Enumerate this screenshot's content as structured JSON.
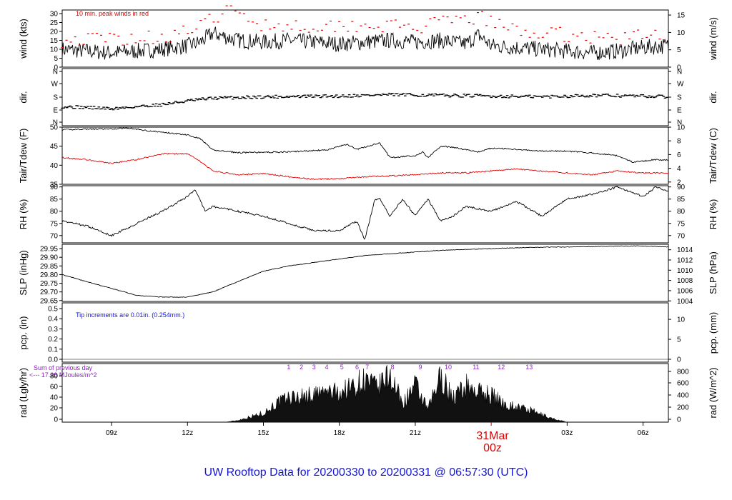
{
  "title": "UW Rooftop Data for 20200330  to  20200331 @ 06:57:30  (UTC)",
  "colors": {
    "title": "#1515d8",
    "red": "#e00000",
    "blue": "#1515d8",
    "purple": "#9020c8",
    "black": "#000000"
  },
  "x_axis": {
    "ticks": [
      {
        "h": 9,
        "label": "09z"
      },
      {
        "h": 12,
        "label": "12z"
      },
      {
        "h": 15,
        "label": "15z"
      },
      {
        "h": 18,
        "label": "18z"
      },
      {
        "h": 21,
        "label": "21z"
      },
      {
        "h": 27,
        "label": "03z"
      },
      {
        "h": 30,
        "label": "06z"
      }
    ],
    "date_label": "31Mar",
    "date_sub": "00z",
    "range_h": [
      7.05,
      31.0
    ]
  },
  "panels": {
    "wind": {
      "ylabel_left": "wind (kts)",
      "ylabel_right": "wind (m/s)",
      "left_ticks": [
        "0",
        "5",
        "10",
        "15",
        "20",
        "25",
        "30"
      ],
      "left_range": [
        0,
        32
      ],
      "right_ticks": [
        "0",
        "5",
        "10",
        "15"
      ],
      "note": "10 min. peak winds in red"
    },
    "dir": {
      "ylabel_left": "dir.",
      "ylabel_right": "dir.",
      "left_ticks": [
        "N",
        "E",
        "S",
        "W",
        "N"
      ],
      "right_ticks": [
        "N",
        "E",
        "S",
        "W",
        "N"
      ]
    },
    "temp": {
      "ylabel_left": "Tair/Tdew (F)",
      "ylabel_right": "Tair/Tdew (C)",
      "left_ticks": [
        "35",
        "40",
        "45",
        "50"
      ],
      "left_range": [
        35,
        50
      ],
      "right_ticks": [
        "2",
        "4",
        "6",
        "8",
        "10"
      ]
    },
    "rh": {
      "ylabel_left": "RH (%)",
      "ylabel_right": "RH (%)",
      "left_ticks": [
        "70",
        "75",
        "80",
        "85",
        "90"
      ],
      "left_range": [
        67,
        90.5
      ],
      "right_ticks": [
        "70",
        "75",
        "80",
        "85",
        "90"
      ]
    },
    "slp": {
      "ylabel_left": "SLP (inHg)",
      "ylabel_right": "SLP (hPa)",
      "left_ticks": [
        "29.65",
        "29.70",
        "29.75",
        "29.80",
        "29.85",
        "29.90",
        "29.95"
      ],
      "left_range": [
        29.645,
        29.975
      ],
      "right_ticks": [
        "1004",
        "1006",
        "1008",
        "1010",
        "1012",
        "1014"
      ]
    },
    "pcp": {
      "ylabel_left": "pcp. (in)",
      "ylabel_right": "pcp. (mm)",
      "left_ticks": [
        "0.0",
        "0.1",
        "0.2",
        "0.3",
        "0.4",
        "0.5"
      ],
      "right_ticks": [
        "0",
        "5",
        "10"
      ],
      "note": "Tip increments are 0.01in. (0.254mm.)"
    },
    "rad": {
      "ylabel_left": "rad (Lgly/hr)",
      "ylabel_right": "rad (W/m^2)",
      "left_ticks": [
        "0",
        "20",
        "40",
        "60",
        "80"
      ],
      "left_range": [
        0,
        82
      ],
      "right_ticks": [
        "0",
        "200",
        "400",
        "600",
        "800"
      ],
      "note_line1": "Sum of previous day",
      "note_line2": "<--- 17.36 MJoules/m^2",
      "markers": [
        "1",
        "2",
        "3",
        "4",
        "5",
        "6",
        "7",
        "8",
        "9",
        "10",
        "11",
        "12",
        "13"
      ]
    }
  },
  "chart_data": {
    "type": "line",
    "x_unit": "hours UTC since 00z 30 Mar 2020 (24 = 00z 31 Mar)",
    "series": [
      {
        "name": "wind",
        "unit": "kts",
        "x": [
          7.05,
          8,
          9,
          10,
          11,
          12,
          12.5,
          13,
          14,
          15,
          16,
          17,
          18,
          19,
          20,
          21,
          22,
          23,
          23.5,
          24,
          25,
          26,
          27,
          28,
          29,
          30,
          31
        ],
        "y": [
          10,
          9,
          8,
          9,
          10,
          12,
          14,
          19,
          15,
          14,
          15,
          14,
          13,
          14,
          15,
          14,
          15,
          13,
          18,
          12,
          11,
          10,
          9,
          8,
          9,
          11,
          12
        ]
      },
      {
        "name": "peak wind",
        "unit": "kts",
        "x": [
          7.05,
          9,
          11,
          12.5,
          13.5,
          15,
          17,
          19,
          21,
          23.5,
          25,
          27,
          29,
          31
        ],
        "y": [
          15,
          16,
          17,
          22,
          32,
          24,
          23,
          24,
          22,
          28,
          20,
          18,
          16,
          19
        ]
      },
      {
        "name": "direction",
        "unit": "deg",
        "x": [
          7.05,
          8,
          9,
          10,
          11,
          12,
          13,
          15,
          18,
          20,
          22,
          24,
          26,
          28,
          30,
          31
        ],
        "y": [
          110,
          105,
          95,
          110,
          125,
          150,
          170,
          180,
          185,
          195,
          190,
          185,
          180,
          190,
          185,
          180
        ]
      },
      {
        "name": "Tair",
        "unit": "F",
        "x": [
          7.05,
          8,
          9,
          9.6,
          10.5,
          12,
          12.5,
          13,
          14,
          16,
          17.5,
          18.3,
          18.7,
          19.4,
          19.6,
          20.0,
          21.0,
          21.3,
          21.5,
          22,
          22.5,
          23.5,
          24,
          25,
          26,
          27,
          28,
          29,
          29.6,
          30.5,
          31
        ],
        "y": [
          49.3,
          49.5,
          49.5,
          49.8,
          49,
          48,
          47,
          44,
          43.3,
          43.5,
          44,
          45.5,
          44.2,
          45.5,
          45.8,
          42,
          42.5,
          43.5,
          42,
          45,
          44.7,
          43.5,
          44.5,
          44.2,
          43.7,
          43.7,
          43.2,
          42.5,
          40.8,
          41.5,
          41.3
        ]
      },
      {
        "name": "Tdew",
        "unit": "F",
        "x": [
          7.05,
          8,
          9,
          10,
          11,
          12,
          12.5,
          13,
          14,
          15,
          16,
          17,
          18,
          19,
          20,
          21,
          22,
          23,
          24,
          25,
          26,
          27,
          28,
          29,
          30,
          31
        ],
        "y": [
          42,
          41.5,
          40.5,
          41.5,
          43,
          43,
          41,
          38.5,
          37.5,
          37.8,
          37,
          36.3,
          36.5,
          37,
          37.2,
          37.5,
          38,
          38,
          38.5,
          39,
          38.5,
          38,
          37.5,
          38.5,
          38,
          38
        ]
      },
      {
        "name": "RH",
        "unit": "%",
        "x": [
          7.05,
          8,
          9,
          10,
          11,
          12,
          12.3,
          12.7,
          13,
          14,
          15,
          16,
          17,
          18,
          18.7,
          19,
          19.4,
          19.6,
          20,
          20.5,
          21,
          21.5,
          22,
          22.5,
          23,
          24,
          25,
          26,
          27,
          28,
          29,
          30,
          30.5,
          31
        ],
        "y": [
          76,
          74,
          70,
          75,
          80,
          86,
          89,
          80,
          82,
          80,
          78,
          75,
          72,
          72,
          76,
          68,
          85,
          85,
          78,
          85,
          78,
          85,
          76,
          78,
          82,
          80,
          84,
          78,
          85,
          87,
          90,
          86,
          90,
          88
        ]
      },
      {
        "name": "SLP",
        "unit": "inHg",
        "x": [
          7.05,
          8,
          9,
          10,
          11,
          12,
          13,
          14,
          15,
          16,
          17,
          18,
          19,
          20,
          21,
          22,
          23,
          24,
          25,
          26,
          27,
          28,
          29,
          30,
          31
        ],
        "y": [
          29.8,
          29.76,
          29.72,
          29.68,
          29.67,
          29.67,
          29.7,
          29.76,
          29.82,
          29.85,
          29.87,
          29.89,
          29.91,
          29.92,
          29.93,
          29.94,
          29.945,
          29.95,
          29.955,
          29.958,
          29.96,
          29.962,
          29.965,
          29.965,
          29.96
        ]
      },
      {
        "name": "precip",
        "unit": "in",
        "x": [
          7.05,
          31
        ],
        "y": [
          0,
          0
        ]
      },
      {
        "name": "rad",
        "unit": "Lgly/hr",
        "x": [
          7.05,
          13.5,
          14,
          15,
          15.5,
          16,
          16.5,
          17,
          17.5,
          18,
          18.5,
          19,
          19.5,
          20,
          20.5,
          21,
          21.5,
          22,
          22.5,
          23,
          23.5,
          24,
          24.5,
          25,
          25.5,
          26,
          26.5,
          27,
          31
        ],
        "y": [
          0,
          0,
          3,
          15,
          30,
          40,
          42,
          45,
          50,
          48,
          58,
          70,
          55,
          78,
          30,
          60,
          20,
          75,
          40,
          60,
          50,
          45,
          30,
          25,
          20,
          12,
          5,
          0,
          0
        ]
      }
    ]
  }
}
